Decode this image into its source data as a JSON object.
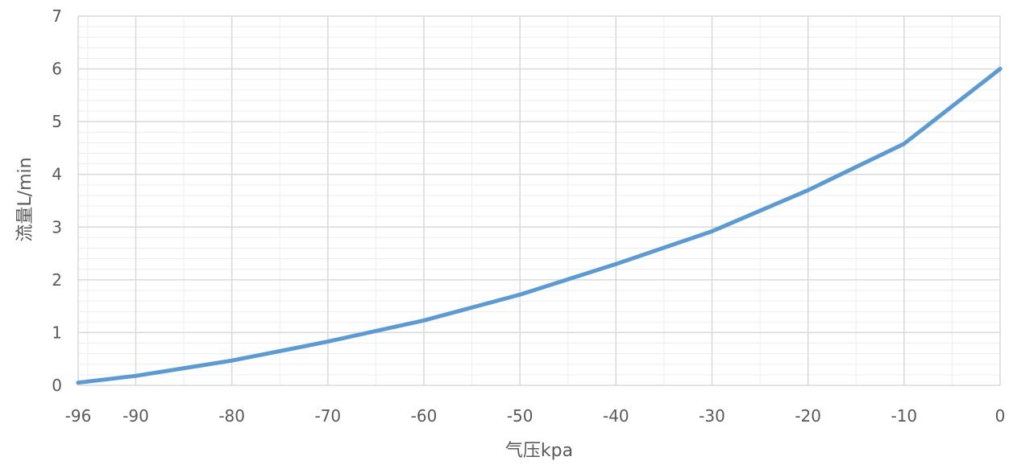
{
  "chart_data": {
    "type": "line",
    "xlabel": "气压kpa",
    "ylabel": "流量L/min",
    "xlim": [
      -96,
      0
    ],
    "ylim": [
      0,
      7
    ],
    "x_ticks": [
      "-96",
      "-90",
      "-80",
      "-70",
      "-60",
      "-50",
      "-40",
      "-30",
      "-20",
      "-10",
      "0"
    ],
    "y_ticks": [
      "0",
      "1",
      "2",
      "3",
      "4",
      "5",
      "6",
      "7"
    ],
    "grid": true,
    "colors": {
      "line": "#5B9BD5",
      "grid_major": "#D9D9D9",
      "grid_minor": "#EDEDED",
      "text": "#595959"
    },
    "series": [
      {
        "x": [
          -96,
          -90,
          -80,
          -70,
          -60,
          -50,
          -40,
          -30,
          -20,
          -10,
          0
        ],
        "values": [
          0.05,
          0.18,
          0.47,
          0.83,
          1.23,
          1.72,
          2.3,
          2.92,
          3.7,
          4.58,
          6.0
        ]
      }
    ]
  }
}
